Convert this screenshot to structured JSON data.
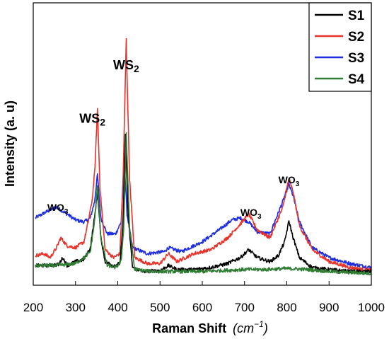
{
  "chart_data": {
    "type": "line",
    "xlabel": "Raman Shift",
    "xlabel_unit_base": "cm",
    "xlabel_unit_exp": "−1",
    "ylabel": "Intensity (a. u)",
    "xlim": [
      200,
      1000
    ],
    "ylim": [
      0,
      1
    ],
    "xticks": [
      "200",
      "300",
      "400",
      "500",
      "600",
      "700",
      "800",
      "900",
      "1000"
    ],
    "grid": false,
    "legend_position": "top-right",
    "annotations": [
      {
        "base": "WO",
        "sub": "3",
        "x": 258,
        "y": 0.335
      },
      {
        "base": "WS",
        "sub": "2",
        "x": 340,
        "y": 0.78
      },
      {
        "base": "WS",
        "sub": "2",
        "x": 420,
        "y": 1.05
      },
      {
        "base": "WO",
        "sub": "3",
        "x": 715,
        "y": 0.31
      },
      {
        "base": "WO",
        "sub": "3",
        "x": 805,
        "y": 0.475
      }
    ],
    "series": [
      {
        "name": "S1",
        "color": "#000000",
        "x": [
          205,
          230,
          260,
          270,
          280,
          300,
          320,
          335,
          345,
          352,
          360,
          370,
          390,
          405,
          412,
          418,
          425,
          435,
          460,
          500,
          520,
          540,
          580,
          620,
          660,
          690,
          710,
          730,
          760,
          780,
          795,
          805,
          815,
          830,
          860,
          900,
          950,
          1000
        ],
        "y": [
          0.06,
          0.06,
          0.065,
          0.1,
          0.06,
          0.08,
          0.09,
          0.15,
          0.3,
          0.43,
          0.2,
          0.08,
          0.06,
          0.07,
          0.25,
          0.73,
          0.3,
          0.05,
          0.03,
          0.035,
          0.06,
          0.04,
          0.04,
          0.05,
          0.07,
          0.1,
          0.14,
          0.1,
          0.08,
          0.11,
          0.18,
          0.285,
          0.2,
          0.1,
          0.05,
          0.04,
          0.03,
          0.03
        ]
      },
      {
        "name": "S2",
        "color": "#e8322a",
        "x": [
          205,
          225,
          240,
          255,
          265,
          280,
          300,
          320,
          330,
          340,
          346,
          352,
          358,
          370,
          390,
          405,
          412,
          420,
          428,
          440,
          470,
          500,
          520,
          540,
          580,
          620,
          660,
          690,
          710,
          730,
          760,
          790,
          805,
          815,
          830,
          860,
          900,
          950,
          1000
        ],
        "y": [
          0.11,
          0.12,
          0.1,
          0.15,
          0.2,
          0.16,
          0.15,
          0.18,
          0.28,
          0.4,
          0.55,
          0.85,
          0.45,
          0.14,
          0.1,
          0.12,
          0.45,
          1.2,
          0.5,
          0.1,
          0.07,
          0.07,
          0.12,
          0.08,
          0.12,
          0.14,
          0.2,
          0.27,
          0.32,
          0.24,
          0.2,
          0.35,
          0.5,
          0.43,
          0.26,
          0.14,
          0.08,
          0.05,
          0.035
        ]
      },
      {
        "name": "S3",
        "color": "#1f2de0",
        "x": [
          205,
          230,
          255,
          280,
          300,
          320,
          335,
          345,
          352,
          360,
          375,
          395,
          408,
          415,
          422,
          435,
          470,
          510,
          520,
          550,
          600,
          640,
          670,
          690,
          710,
          730,
          760,
          790,
          805,
          815,
          830,
          860,
          900,
          950,
          1000
        ],
        "y": [
          0.3,
          0.33,
          0.355,
          0.32,
          0.29,
          0.28,
          0.3,
          0.38,
          0.52,
          0.3,
          0.22,
          0.22,
          0.28,
          0.6,
          0.32,
          0.15,
          0.12,
          0.13,
          0.15,
          0.13,
          0.18,
          0.24,
          0.29,
          0.3,
          0.28,
          0.23,
          0.22,
          0.38,
          0.47,
          0.41,
          0.28,
          0.15,
          0.1,
          0.07,
          0.05
        ]
      },
      {
        "name": "S4",
        "color": "#2e7d32",
        "x": [
          205,
          250,
          280,
          300,
          320,
          335,
          345,
          352,
          360,
          375,
          395,
          408,
          414,
          420,
          428,
          440,
          480,
          520,
          560,
          600,
          650,
          700,
          750,
          800,
          850,
          900,
          950,
          1000
        ],
        "y": [
          0.06,
          0.06,
          0.065,
          0.07,
          0.1,
          0.13,
          0.28,
          0.46,
          0.2,
          0.06,
          0.05,
          0.08,
          0.25,
          0.73,
          0.25,
          0.04,
          0.03,
          0.03,
          0.03,
          0.03,
          0.035,
          0.04,
          0.04,
          0.045,
          0.04,
          0.03,
          0.025,
          0.02
        ]
      }
    ]
  }
}
